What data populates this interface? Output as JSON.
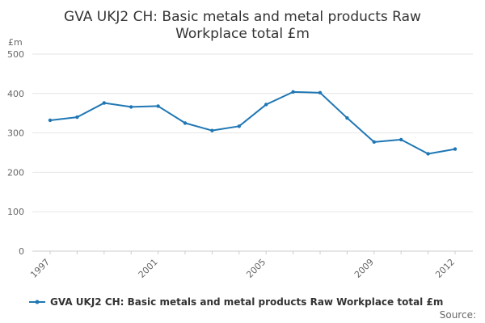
{
  "chart_data": {
    "type": "line",
    "title_lines": [
      "GVA UKJ2 CH: Basic metals and metal products Raw",
      "Workplace total £m"
    ],
    "ylabel": "£m",
    "xlabel": "",
    "x": [
      1997,
      1998,
      1999,
      2000,
      2001,
      2002,
      2003,
      2004,
      2005,
      2006,
      2007,
      2008,
      2009,
      2010,
      2011,
      2012
    ],
    "xticks": [
      "1997",
      "2001",
      "2005",
      "2009",
      "2012"
    ],
    "yticks": [
      "0",
      "100",
      "200",
      "300",
      "400",
      "500"
    ],
    "ylim": [
      0,
      500
    ],
    "grid": true,
    "series": [
      {
        "name": "GVA UKJ2 CH: Basic metals and metal products Raw Workplace total £m",
        "values": [
          332,
          340,
          376,
          366,
          368,
          325,
          306,
          317,
          372,
          404,
          402,
          338,
          277,
          283,
          247,
          259
        ],
        "color": "#1f77b4"
      }
    ],
    "legend_position": "bottom-left",
    "source_label": "Source:"
  }
}
